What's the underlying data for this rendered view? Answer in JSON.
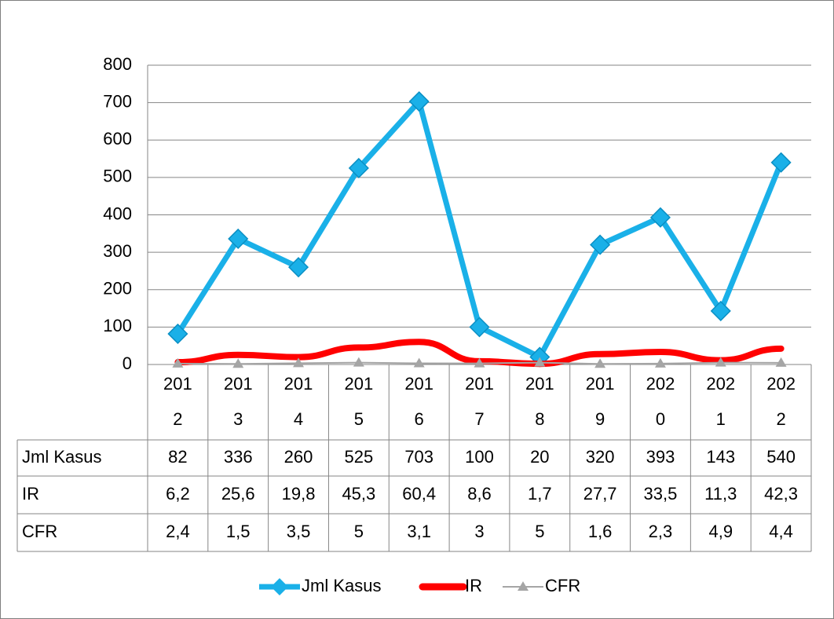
{
  "chart_data": {
    "type": "line",
    "categories": [
      "2012",
      "2013",
      "2014",
      "2015",
      "2016",
      "2017",
      "2018",
      "2019",
      "2020",
      "2021",
      "2022"
    ],
    "series": [
      {
        "name": "Jml Kasus",
        "color": "#1ab0e8",
        "values": [
          82,
          336,
          260,
          525,
          703,
          100,
          20,
          320,
          393,
          143,
          540
        ]
      },
      {
        "name": "IR",
        "color": "#ff0000",
        "values": [
          6.2,
          25.6,
          19.8,
          45.3,
          60.4,
          8.6,
          1.7,
          27.7,
          33.5,
          11.3,
          42.3
        ],
        "value_labels": [
          "6,2",
          "25,6",
          "19,8",
          "45,3",
          "60,4",
          "8,6",
          "1,7",
          "27,7",
          "33,5",
          "11,3",
          "42,3"
        ]
      },
      {
        "name": "CFR",
        "color": "#a5a5a5",
        "values": [
          2.4,
          1.5,
          3.5,
          5,
          3.1,
          3,
          5,
          1.6,
          2.3,
          4.9,
          4.4
        ],
        "value_labels": [
          "2,4",
          "1,5",
          "3,5",
          "5",
          "3,1",
          "3",
          "5",
          "1,6",
          "2,3",
          "4,9",
          "4,4"
        ]
      }
    ],
    "ylim": [
      0,
      800
    ],
    "yticks": [
      0,
      100,
      200,
      300,
      400,
      500,
      600,
      700,
      800
    ],
    "grid": true,
    "legend": "bottom",
    "data_table": true
  }
}
